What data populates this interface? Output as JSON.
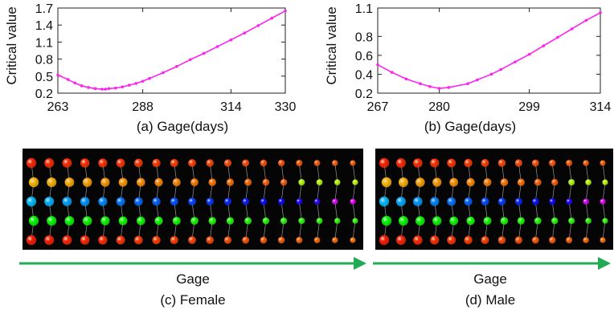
{
  "chart_data": [
    {
      "type": "line",
      "ylabel": "Critical value",
      "xlabel": "Gage(days)",
      "xlim": [
        263,
        330
      ],
      "ylim": [
        0.2,
        1.7
      ],
      "xticks": [
        "263",
        "288",
        "314",
        "330"
      ],
      "yticks": [
        "0.2",
        "0.5",
        "0.8",
        "1.1",
        "1.4",
        "1.7"
      ],
      "series": [
        {
          "color": "#ff22ee",
          "x": [
            263,
            266,
            268,
            270,
            272,
            274,
            276,
            277,
            278,
            280,
            282,
            284,
            286,
            288,
            290,
            294,
            298,
            302,
            306,
            310,
            314,
            318,
            322,
            326,
            330
          ],
          "y": [
            0.52,
            0.44,
            0.38,
            0.33,
            0.3,
            0.28,
            0.27,
            0.27,
            0.28,
            0.29,
            0.31,
            0.34,
            0.37,
            0.41,
            0.46,
            0.56,
            0.67,
            0.79,
            0.9,
            1.02,
            1.14,
            1.26,
            1.39,
            1.52,
            1.65
          ]
        }
      ]
    },
    {
      "type": "line",
      "ylabel": "Critical value",
      "xlabel": "Gage(days)",
      "xlim": [
        267,
        314
      ],
      "ylim": [
        0.2,
        1.1
      ],
      "xticks": [
        "267",
        "280",
        "299",
        "314"
      ],
      "yticks": [
        "0.2",
        "0.4",
        "0.6",
        "0.8",
        "1.1"
      ],
      "ytick_values": [
        0.2,
        0.4,
        0.6,
        0.8,
        1.1
      ],
      "series": [
        {
          "color": "#ff22ee",
          "x": [
            267,
            270,
            273,
            276,
            278,
            280,
            282,
            286,
            288,
            291,
            293,
            296,
            299,
            302,
            305,
            308,
            311,
            314
          ],
          "y": [
            0.5,
            0.42,
            0.35,
            0.3,
            0.27,
            0.25,
            0.26,
            0.3,
            0.34,
            0.4,
            0.45,
            0.53,
            0.61,
            0.7,
            0.79,
            0.88,
            0.97,
            1.05
          ]
        }
      ]
    }
  ],
  "captions": {
    "a": "(a) Gage(days)",
    "b": "(b) Gage(days)",
    "c": "(c) Female",
    "d": "(d) Male"
  },
  "arrow_labels": {
    "c": "Gage",
    "d": "Gage"
  },
  "bead_panels": {
    "arrow_color": "#22aa55",
    "female_columns": 19,
    "male_columns": 14
  }
}
